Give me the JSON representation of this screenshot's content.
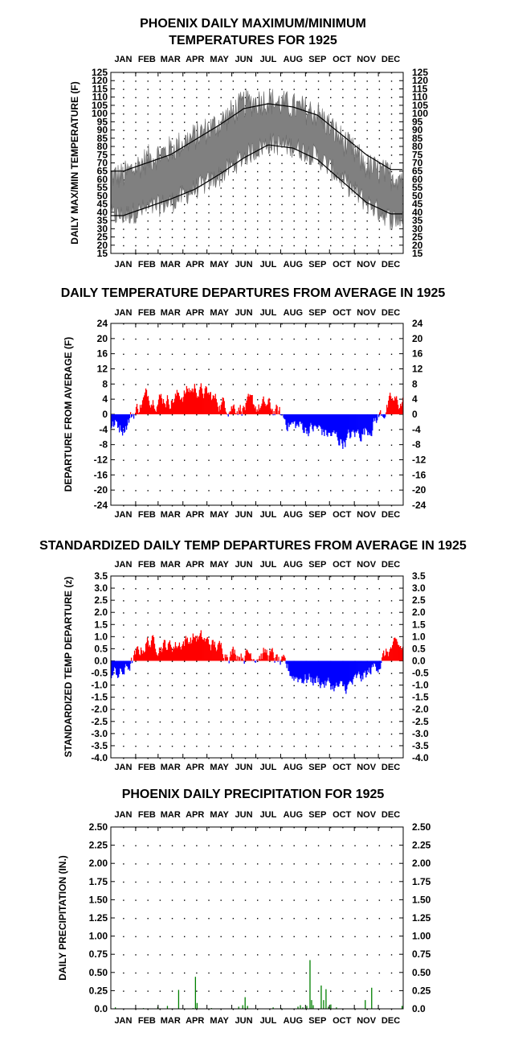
{
  "chart_data": [
    {
      "type": "area",
      "title": "PHOENIX DAILY MAXIMUM/MINIMUM\nTEMPERATURES FOR 1925",
      "ylabel": "DAILY MAX/MIN TEMPERATURE  (F)",
      "months": [
        "JAN",
        "FEB",
        "MAR",
        "APR",
        "MAY",
        "JUN",
        "JUL",
        "AUG",
        "SEP",
        "OCT",
        "NOV",
        "DEC"
      ],
      "ylim": [
        15,
        125
      ],
      "yticks": [
        "15",
        "20",
        "25",
        "30",
        "35",
        "40",
        "45",
        "50",
        "55",
        "60",
        "65",
        "70",
        "75",
        "80",
        "85",
        "90",
        "95",
        "100",
        "105",
        "110",
        "115",
        "120",
        "125"
      ],
      "grid": "dotted",
      "series": [
        {
          "role": "daily_max",
          "color": "#808080",
          "monthly_values": [
            62,
            72,
            78,
            86,
            94,
            106,
            108,
            104,
            100,
            84,
            68,
            62
          ]
        },
        {
          "role": "daily_min",
          "color": "#808080",
          "monthly_values": [
            38,
            42,
            46,
            54,
            62,
            74,
            82,
            80,
            74,
            60,
            46,
            36
          ]
        },
        {
          "role": "normal_max",
          "color": "#000000",
          "monthly_values": [
            65,
            70,
            75,
            84,
            93,
            103,
            106,
            104,
            99,
            87,
            75,
            66
          ]
        },
        {
          "role": "normal_min",
          "color": "#000000",
          "monthly_values": [
            38,
            43,
            48,
            54,
            63,
            73,
            81,
            79,
            72,
            59,
            46,
            39
          ]
        }
      ]
    },
    {
      "type": "bar",
      "title": "DAILY TEMPERATURE DEPARTURES FROM AVERAGE IN 1925",
      "ylabel": "DEPARTURE FROM AVERAGE  (F)",
      "months": [
        "JAN",
        "FEB",
        "MAR",
        "APR",
        "MAY",
        "JUN",
        "JUL",
        "AUG",
        "SEP",
        "OCT",
        "NOV",
        "DEC"
      ],
      "ylim": [
        -24,
        24
      ],
      "yticks": [
        "-24",
        "-20",
        "-16",
        "-12",
        "-8",
        "-4",
        "0",
        "4",
        "8",
        "12",
        "16",
        "20",
        "24"
      ],
      "positive_color": "#ff0000",
      "negative_color": "#0000ff",
      "monthly_mean_departure": [
        -3,
        5,
        4,
        7,
        3,
        2,
        2,
        -3,
        -4,
        -7,
        -4,
        3
      ]
    },
    {
      "type": "bar",
      "title": "STANDARDIZED DAILY TEMP DEPARTURES FROM AVERAGE IN 1925",
      "ylabel": "STANDARDIZED TEMP DEPARTURE  (z)",
      "months": [
        "JAN",
        "FEB",
        "MAR",
        "APR",
        "MAY",
        "JUN",
        "JUL",
        "AUG",
        "SEP",
        "OCT",
        "NOV",
        "DEC"
      ],
      "ylim": [
        -4.0,
        3.5
      ],
      "yticks": [
        "-4.0",
        "-3.5",
        "-3.0",
        "-2.5",
        "-2.0",
        "-1.5",
        "-1.0",
        "-0.5",
        "0.0",
        "0.5",
        "1.0",
        "1.5",
        "2.0",
        "2.5",
        "3.0",
        "3.5"
      ],
      "positive_color": "#ff0000",
      "negative_color": "#0000ff",
      "monthly_mean_departure": [
        -0.5,
        0.8,
        0.6,
        1.0,
        0.5,
        0.3,
        0.3,
        -0.6,
        -0.8,
        -1.2,
        -0.6,
        0.5
      ]
    },
    {
      "type": "bar",
      "title": "PHOENIX DAILY PRECIPITATION FOR 1925",
      "ylabel": "DAILY PRECIPITATION (IN.)",
      "months": [
        "JAN",
        "FEB",
        "MAR",
        "APR",
        "MAY",
        "JUN",
        "JUL",
        "AUG",
        "SEP",
        "OCT",
        "NOV",
        "DEC"
      ],
      "ylim": [
        0,
        2.5
      ],
      "yticks": [
        "0.0",
        "0.25",
        "0.50",
        "0.75",
        "1.00",
        "1.25",
        "1.50",
        "1.75",
        "2.00",
        "2.25",
        "2.50"
      ],
      "color": "#008000",
      "events": [
        {
          "day": 5,
          "value": 0.02
        },
        {
          "day": 40,
          "value": 0.01
        },
        {
          "day": 58,
          "value": 0.03
        },
        {
          "day": 70,
          "value": 0.04
        },
        {
          "day": 84,
          "value": 0.26
        },
        {
          "day": 102,
          "value": 0.01
        },
        {
          "day": 105,
          "value": 0.44
        },
        {
          "day": 107,
          "value": 0.08
        },
        {
          "day": 125,
          "value": 0.01
        },
        {
          "day": 159,
          "value": 0.03
        },
        {
          "day": 164,
          "value": 0.05
        },
        {
          "day": 167,
          "value": 0.16
        },
        {
          "day": 170,
          "value": 0.04
        },
        {
          "day": 202,
          "value": 0.02
        },
        {
          "day": 212,
          "value": 0.01
        },
        {
          "day": 233,
          "value": 0.03
        },
        {
          "day": 236,
          "value": 0.05
        },
        {
          "day": 239,
          "value": 0.02
        },
        {
          "day": 244,
          "value": 0.04
        },
        {
          "day": 248,
          "value": 0.67
        },
        {
          "day": 250,
          "value": 0.12
        },
        {
          "day": 252,
          "value": 0.05
        },
        {
          "day": 262,
          "value": 0.32
        },
        {
          "day": 265,
          "value": 0.12
        },
        {
          "day": 268,
          "value": 0.27
        },
        {
          "day": 271,
          "value": 0.03
        },
        {
          "day": 274,
          "value": 0.06
        },
        {
          "day": 281,
          "value": 0.02
        },
        {
          "day": 317,
          "value": 0.12
        },
        {
          "day": 325,
          "value": 0.29
        },
        {
          "day": 333,
          "value": 0.01
        },
        {
          "day": 363,
          "value": 0.04
        }
      ]
    }
  ]
}
